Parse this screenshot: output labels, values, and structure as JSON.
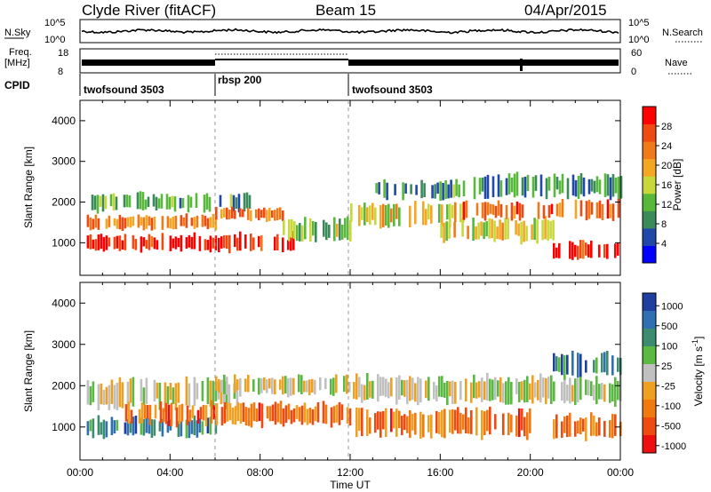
{
  "header": {
    "station": "Clyde River (fitACF)",
    "beam": "Beam 15",
    "date": "04/Apr/2015"
  },
  "colors": {
    "power_scale": [
      "#0000ff",
      "#1f48a8",
      "#3b8a5a",
      "#58b83a",
      "#c8d83a",
      "#f5a623",
      "#f07a1a",
      "#ef4a12",
      "#ff0000"
    ],
    "velocity_scale": [
      "#1e3fa0",
      "#2f6fb2",
      "#3e8c70",
      "#5ab843",
      "#c0c0c0",
      "#f0a020",
      "#f07a10",
      "#ef4a12",
      "#ee1010"
    ],
    "ground_scatter": "#bebebe"
  },
  "chart_data": [
    {
      "type": "line",
      "panel": "noise",
      "left_label": "N.Sky",
      "left_ticks": [
        "10^5",
        "10^0"
      ],
      "right_label": "N.Search",
      "right_ticks": [
        "10^5",
        "10^0"
      ]
    },
    {
      "type": "line",
      "panel": "frequency",
      "left_label_1": "Freq.",
      "left_label_2": "[MHz]",
      "left_ticks": [
        18,
        8
      ],
      "right_label": "Nave",
      "right_ticks": [
        60,
        0
      ]
    },
    {
      "type": "table",
      "panel": "cpid",
      "label": "CPID",
      "segments": [
        {
          "name": "twofsound 3503",
          "start_hour": 0,
          "end_hour": 6
        },
        {
          "name": "rbsp 200",
          "start_hour": 6,
          "end_hour": 12
        },
        {
          "name": "twofsound 3503",
          "start_hour": 12,
          "end_hour": 24
        }
      ]
    },
    {
      "type": "heatmap",
      "panel": "power",
      "ylabel": "Slant Range [km]",
      "ylim": [
        200,
        4500
      ],
      "yticks": [
        1000,
        2000,
        3000,
        4000
      ],
      "xlim": [
        0,
        24
      ],
      "colorbar_label": "Power [dB]",
      "colorbar_ticks": [
        4,
        8,
        12,
        16,
        20,
        24,
        28
      ],
      "scatter_bands": [
        {
          "start_hour": 0.3,
          "end_hour": 6,
          "range_center": 1000,
          "half_width": 180,
          "level": 0.92
        },
        {
          "start_hour": 0.3,
          "end_hour": 6,
          "range_center": 1500,
          "half_width": 150,
          "level": 0.7
        },
        {
          "start_hour": 0.5,
          "end_hour": 7.5,
          "range_center": 2000,
          "half_width": 200,
          "level": 0.35
        },
        {
          "start_hour": 6,
          "end_hour": 9.5,
          "range_center": 1000,
          "half_width": 200,
          "level": 0.9
        },
        {
          "start_hour": 6,
          "end_hour": 9,
          "range_center": 1700,
          "half_width": 150,
          "level": 0.75
        },
        {
          "start_hour": 9,
          "end_hour": 12,
          "range_center": 1300,
          "half_width": 250,
          "level": 0.45
        },
        {
          "start_hour": 12,
          "end_hour": 17,
          "range_center": 1700,
          "half_width": 250,
          "level": 0.55
        },
        {
          "start_hour": 13,
          "end_hour": 17,
          "range_center": 2300,
          "half_width": 200,
          "level": 0.3
        },
        {
          "start_hour": 16,
          "end_hour": 21,
          "range_center": 1300,
          "half_width": 250,
          "level": 0.55
        },
        {
          "start_hour": 17,
          "end_hour": 24,
          "range_center": 1800,
          "half_width": 200,
          "level": 0.8
        },
        {
          "start_hour": 17,
          "end_hour": 24,
          "range_center": 2400,
          "half_width": 250,
          "level": 0.3
        },
        {
          "start_hour": 21,
          "end_hour": 24,
          "range_center": 800,
          "half_width": 200,
          "level": 0.92
        }
      ]
    },
    {
      "type": "heatmap",
      "panel": "velocity",
      "ylabel": "Slant Range [km]",
      "ylim": [
        200,
        4500
      ],
      "yticks": [
        1000,
        2000,
        3000,
        4000
      ],
      "xlabel": "Time UT",
      "xticks": [
        "00:00",
        "04:00",
        "08:00",
        "12:00",
        "16:00",
        "20:00",
        "00:00"
      ],
      "xlim": [
        0,
        24
      ],
      "colorbar_label": "Velocity [m s^-1]",
      "colorbar_ticks": [
        "1000",
        "500",
        "100",
        "25",
        "-25",
        "-100",
        "-500",
        "-1000"
      ],
      "scatter_bands": [
        {
          "start_hour": 0.3,
          "end_hour": 6,
          "range_center": 1000,
          "half_width": 200,
          "level": 0.25
        },
        {
          "start_hour": 0.3,
          "end_hour": 7,
          "range_center": 1800,
          "half_width": 300,
          "level": 0.5
        },
        {
          "start_hour": 2,
          "end_hour": 12,
          "range_center": 1300,
          "half_width": 250,
          "level": 0.75
        },
        {
          "start_hour": 6,
          "end_hour": 12,
          "range_center": 2000,
          "half_width": 200,
          "level": 0.5
        },
        {
          "start_hour": 12,
          "end_hour": 24,
          "range_center": 1900,
          "half_width": 300,
          "level": 0.5
        },
        {
          "start_hour": 12,
          "end_hour": 20,
          "range_center": 1100,
          "half_width": 300,
          "level": 0.75
        },
        {
          "start_hour": 21,
          "end_hour": 24,
          "range_center": 1000,
          "half_width": 250,
          "level": 0.75
        },
        {
          "start_hour": 21,
          "end_hour": 24,
          "range_center": 2500,
          "half_width": 250,
          "level": 0.2
        }
      ]
    }
  ]
}
